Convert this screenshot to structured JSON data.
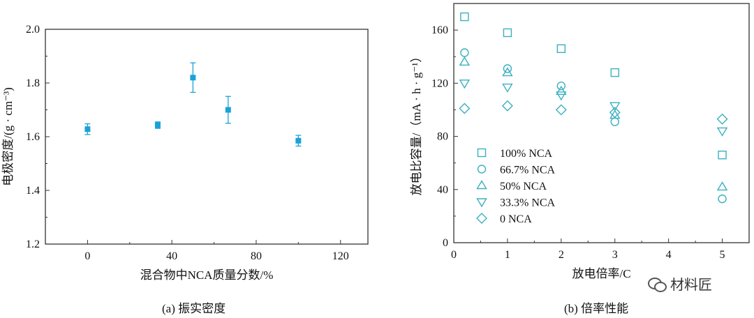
{
  "chart_data": [
    {
      "type": "scatter",
      "id": "a",
      "title": "(a) 振实密度",
      "xlabel": "混合物中NCA质量分数/%",
      "ylabel": "电极密度/(g · cm⁻³)",
      "xlim": [
        -20,
        133
      ],
      "ylim": [
        1.2,
        2.0
      ],
      "xticks": [
        0,
        40,
        80,
        120
      ],
      "yticks": [
        1.2,
        1.4,
        1.6,
        1.8,
        2.0
      ],
      "ytick_labels": [
        "1.2",
        "1.4",
        "1.6",
        "1.8",
        "2.0"
      ],
      "x": [
        0,
        33.3,
        50,
        66.7,
        100
      ],
      "y": [
        1.628,
        1.643,
        1.82,
        1.7,
        1.585
      ],
      "err": [
        0.02,
        0.012,
        0.055,
        0.05,
        0.02
      ],
      "color": "#1ba1d8"
    },
    {
      "type": "scatter",
      "id": "b",
      "title": "(b) 倍率性能",
      "xlabel": "放电倍率/C",
      "ylabel": "放电比容量/（mA · h · g⁻¹）",
      "xlim": [
        0,
        5.5
      ],
      "ylim": [
        0,
        180
      ],
      "xticks": [
        0,
        1,
        2,
        3,
        4,
        5
      ],
      "yticks": [
        0,
        40,
        80,
        120,
        160
      ],
      "x": [
        0.2,
        1,
        2,
        3,
        5
      ],
      "legend_position": "center-left",
      "color": "#3ab0c0",
      "series": [
        {
          "name": "100% NCA",
          "marker": "square",
          "values": [
            170,
            158,
            146,
            128,
            66
          ]
        },
        {
          "name": "66.7% NCA",
          "marker": "circle",
          "values": [
            143,
            131,
            118,
            91,
            33
          ]
        },
        {
          "name": "50% NCA",
          "marker": "triangle-up",
          "values": [
            136,
            128,
            114,
            96,
            42
          ]
        },
        {
          "name": "33.3% NCA",
          "marker": "triangle-down",
          "values": [
            120,
            117,
            111,
            103,
            84
          ]
        },
        {
          "name": "0 NCA",
          "marker": "diamond",
          "values": [
            101,
            103,
            100,
            98,
            93
          ]
        }
      ]
    }
  ],
  "watermark": {
    "text": "材料匠",
    "icon": "wechat-icon"
  }
}
